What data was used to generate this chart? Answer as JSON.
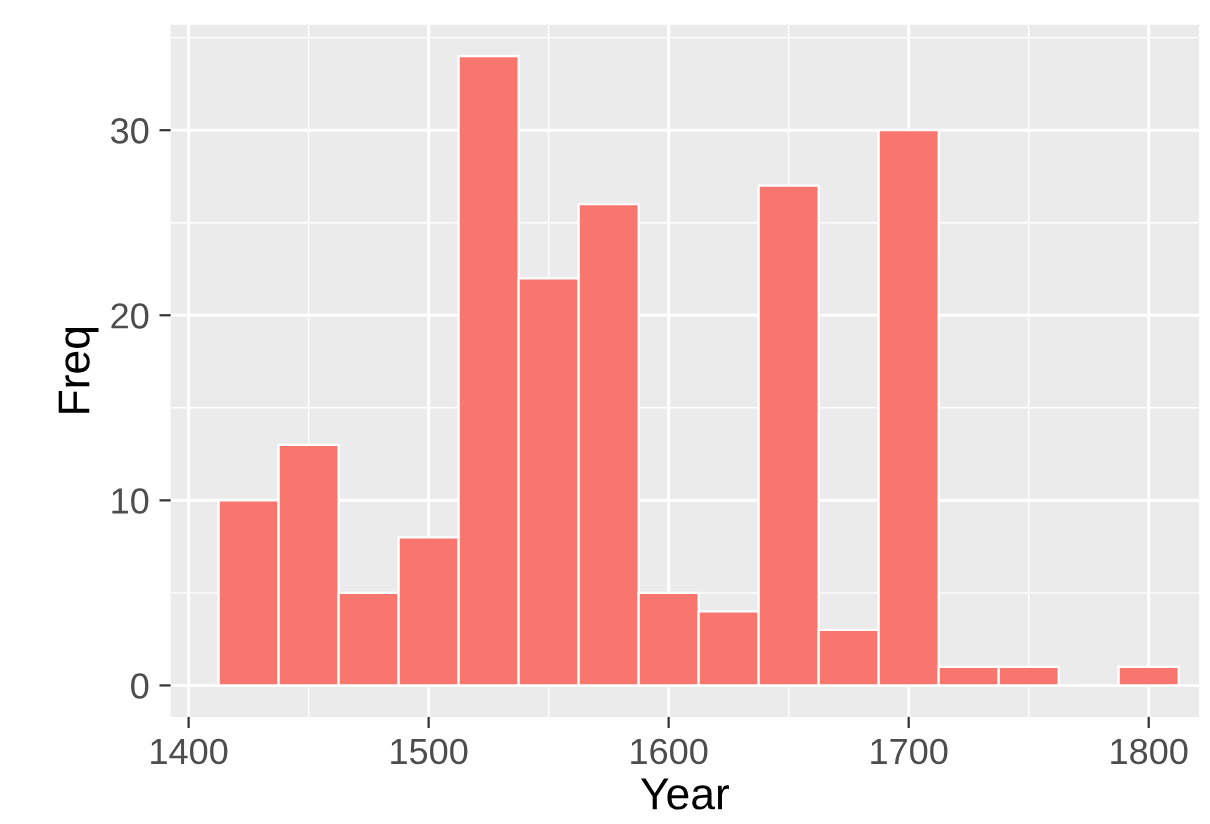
{
  "chart_data": {
    "type": "histogram",
    "xlabel": "Year",
    "ylabel": "Freq",
    "bins": [
      1412.5,
      1437.5,
      1462.5,
      1487.5,
      1512.5,
      1537.5,
      1562.5,
      1587.5,
      1612.5,
      1637.5,
      1662.5,
      1687.5,
      1712.5,
      1737.5,
      1762.5,
      1787.5,
      1812.5
    ],
    "values": [
      10,
      13,
      5,
      8,
      34,
      22,
      26,
      5,
      4,
      27,
      3,
      30,
      1,
      1,
      0,
      1
    ],
    "color": "#f8766d",
    "xlim": [
      1392.5,
      1821
    ],
    "ylim": [
      -1.7,
      35.7
    ],
    "xticks": [
      1400,
      1500,
      1600,
      1700,
      1800
    ],
    "yticks": [
      0,
      10,
      20,
      30
    ],
    "grid": true,
    "legend": false
  }
}
